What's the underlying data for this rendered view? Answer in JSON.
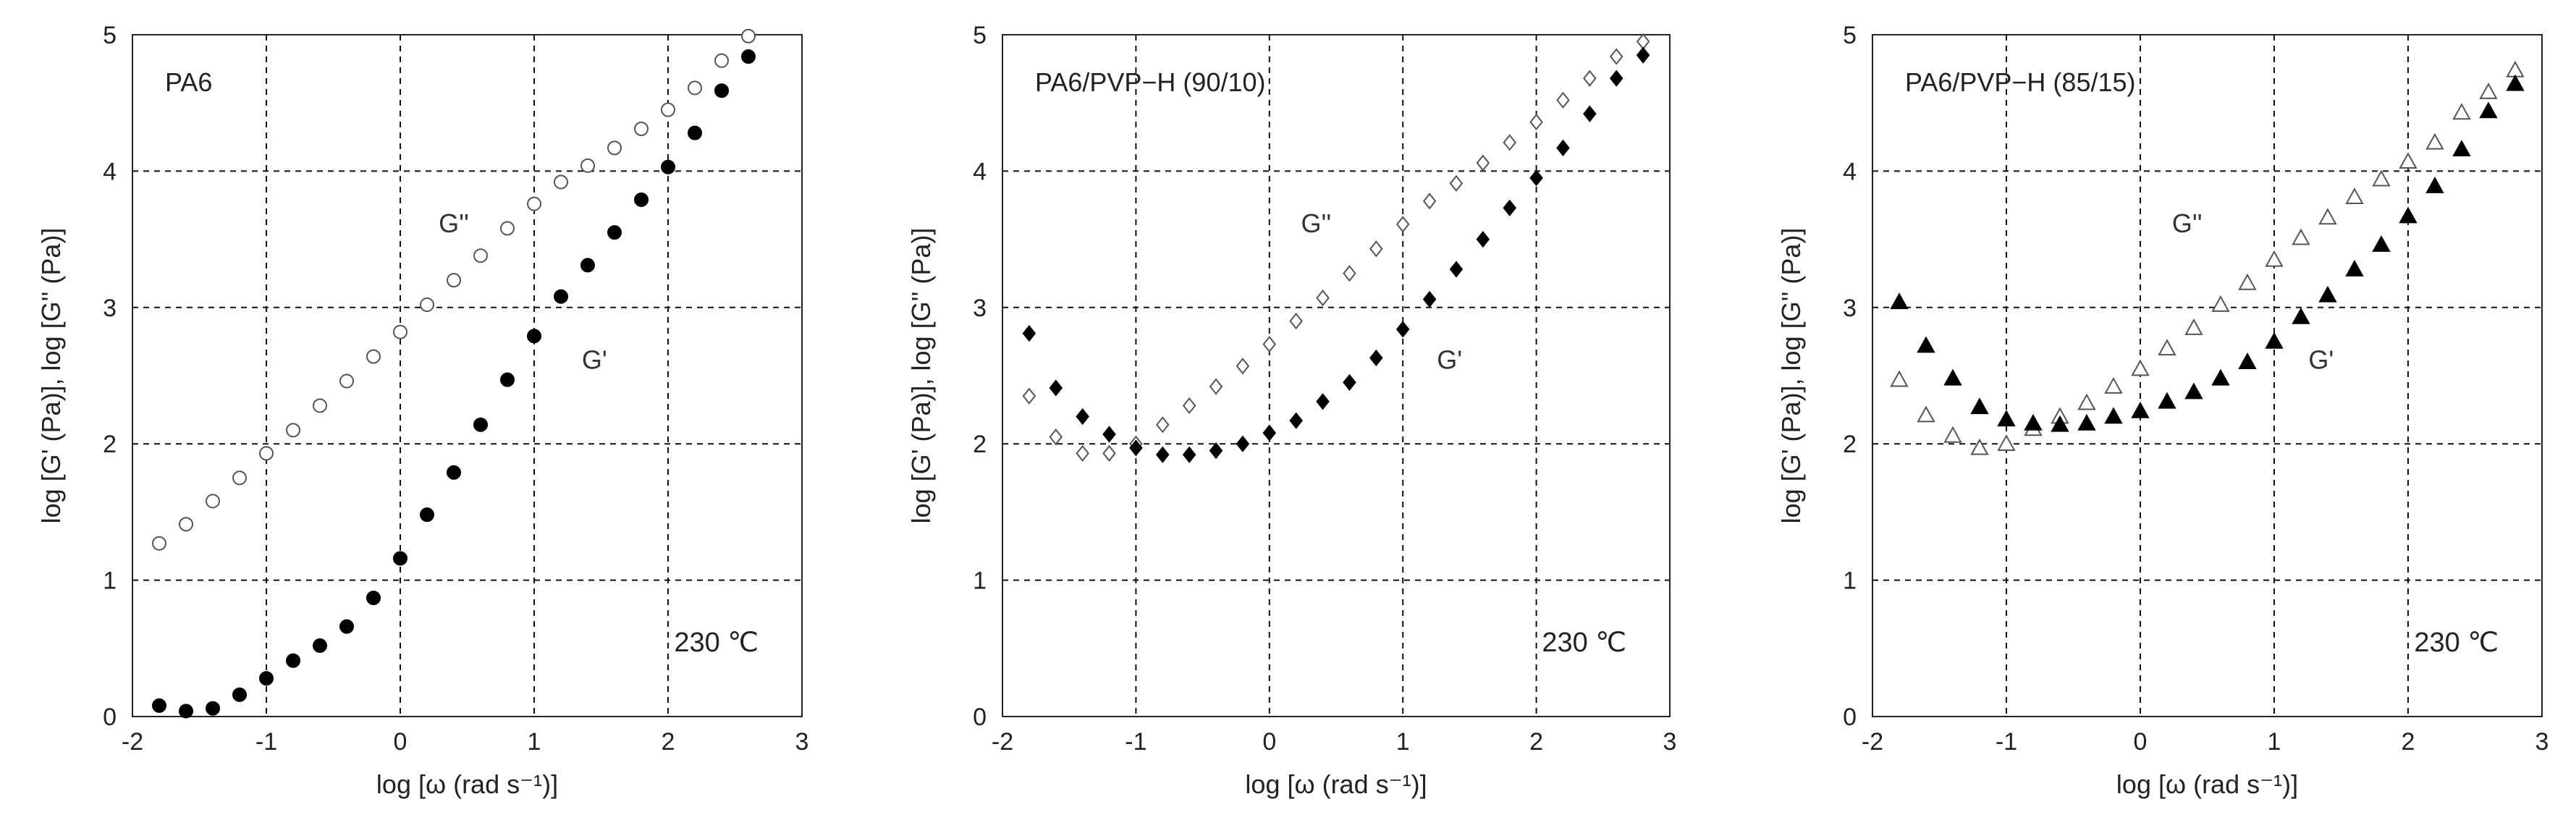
{
  "chart_data": [
    {
      "type": "scatter",
      "title": "PA6",
      "temperature": "230 ℃",
      "xlabel": "log [ω (rad s⁻¹)]",
      "ylabel": "log [G' (Pa)], log [G'' (Pa)]",
      "xlim": [
        -2,
        3
      ],
      "ylim": [
        0,
        5
      ],
      "xticks": [
        "-2",
        "-1",
        "0",
        "1",
        "2",
        "3"
      ],
      "yticks": [
        "0",
        "1",
        "2",
        "3",
        "4",
        "5"
      ],
      "marker": "circle",
      "series": [
        {
          "name": "G''",
          "label": "G''",
          "fill": "open",
          "x": [
            -1.8,
            -1.6,
            -1.4,
            -1.2,
            -1.0,
            -0.8,
            -0.6,
            -0.4,
            -0.2,
            0.0,
            0.2,
            0.4,
            0.6,
            0.8,
            1.0,
            1.2,
            1.4,
            1.6,
            1.8,
            2.0,
            2.2,
            2.4,
            2.6
          ],
          "y": [
            1.27,
            1.41,
            1.58,
            1.75,
            1.93,
            2.1,
            2.28,
            2.46,
            2.64,
            2.82,
            3.02,
            3.2,
            3.38,
            3.58,
            3.76,
            3.92,
            4.04,
            4.17,
            4.31,
            4.45,
            4.61,
            4.81,
            4.99
          ]
        },
        {
          "name": "G'",
          "label": "G'",
          "fill": "filled",
          "x": [
            -1.8,
            -1.6,
            -1.4,
            -1.2,
            -1.0,
            -0.8,
            -0.6,
            -0.4,
            -0.2,
            0.0,
            0.2,
            0.4,
            0.6,
            0.8,
            1.0,
            1.2,
            1.4,
            1.6,
            1.8,
            2.0,
            2.2,
            2.4,
            2.6
          ],
          "y": [
            0.08,
            0.04,
            0.06,
            0.16,
            0.28,
            0.41,
            0.52,
            0.66,
            0.87,
            1.16,
            1.48,
            1.79,
            2.14,
            2.47,
            2.79,
            3.08,
            3.31,
            3.55,
            3.79,
            4.03,
            4.28,
            4.59,
            4.84
          ]
        }
      ],
      "annotations": [
        {
          "text": "G''",
          "x": 0.4,
          "y": 3.55
        },
        {
          "text": "G'",
          "x": 1.45,
          "y": 2.55
        }
      ]
    },
    {
      "type": "scatter",
      "title": "PA6/PVP−H (90/10)",
      "temperature": "230 ℃",
      "xlabel": "log [ω (rad s⁻¹)]",
      "ylabel": "log [G' (Pa)], log [G'' (Pa)]",
      "xlim": [
        -2,
        3
      ],
      "ylim": [
        0,
        5
      ],
      "xticks": [
        "-2",
        "-1",
        "0",
        "1",
        "2",
        "3"
      ],
      "yticks": [
        "0",
        "1",
        "2",
        "3",
        "4",
        "5"
      ],
      "marker": "diamond",
      "series": [
        {
          "name": "G''",
          "label": "G''",
          "fill": "open",
          "x": [
            -1.8,
            -1.6,
            -1.4,
            -1.2,
            -1.0,
            -0.8,
            -0.6,
            -0.4,
            -0.2,
            0.0,
            0.2,
            0.4,
            0.6,
            0.8,
            1.0,
            1.2,
            1.4,
            1.6,
            1.8,
            2.0,
            2.2,
            2.4,
            2.6,
            2.8
          ],
          "y": [
            2.35,
            2.05,
            1.93,
            1.93,
            2.0,
            2.14,
            2.28,
            2.42,
            2.57,
            2.73,
            2.9,
            3.07,
            3.25,
            3.43,
            3.61,
            3.78,
            3.91,
            4.06,
            4.21,
            4.36,
            4.52,
            4.68,
            4.84,
            4.95
          ]
        },
        {
          "name": "G'",
          "label": "G'",
          "fill": "filled",
          "x": [
            -1.8,
            -1.6,
            -1.4,
            -1.2,
            -1.0,
            -0.8,
            -0.6,
            -0.4,
            -0.2,
            0.0,
            0.2,
            0.4,
            0.6,
            0.8,
            1.0,
            1.2,
            1.4,
            1.6,
            1.8,
            2.0,
            2.2,
            2.4,
            2.6,
            2.8
          ],
          "y": [
            2.81,
            2.41,
            2.2,
            2.07,
            1.97,
            1.92,
            1.92,
            1.95,
            2.0,
            2.08,
            2.17,
            2.31,
            2.45,
            2.63,
            2.84,
            3.06,
            3.28,
            3.5,
            3.73,
            3.95,
            4.17,
            4.42,
            4.68,
            4.85
          ]
        }
      ],
      "annotations": [
        {
          "text": "G''",
          "x": 0.35,
          "y": 3.55
        },
        {
          "text": "G'",
          "x": 1.35,
          "y": 2.55
        }
      ]
    },
    {
      "type": "scatter",
      "title": "PA6/PVP−H (85/15)",
      "temperature": "230 ℃",
      "xlabel": "log [ω (rad s⁻¹)]",
      "ylabel": "log [G' (Pa)], log [G'' (Pa)]",
      "xlim": [
        -2,
        3
      ],
      "ylim": [
        0,
        5
      ],
      "xticks": [
        "-2",
        "-1",
        "0",
        "1",
        "2",
        "3"
      ],
      "yticks": [
        "0",
        "1",
        "2",
        "3",
        "4",
        "5"
      ],
      "marker": "triangle",
      "series": [
        {
          "name": "G''",
          "label": "G''",
          "fill": "open",
          "x": [
            -1.8,
            -1.6,
            -1.4,
            -1.2,
            -1.0,
            -0.8,
            -0.6,
            -0.4,
            -0.2,
            0.0,
            0.2,
            0.4,
            0.6,
            0.8,
            1.0,
            1.2,
            1.4,
            1.6,
            1.8,
            2.0,
            2.2,
            2.4,
            2.6,
            2.8
          ],
          "y": [
            2.47,
            2.21,
            2.06,
            1.97,
            2.0,
            2.11,
            2.2,
            2.3,
            2.42,
            2.55,
            2.7,
            2.85,
            3.02,
            3.18,
            3.35,
            3.51,
            3.66,
            3.81,
            3.94,
            4.07,
            4.21,
            4.43,
            4.58,
            4.74
          ]
        },
        {
          "name": "G'",
          "label": "G'",
          "fill": "filled",
          "x": [
            -1.8,
            -1.6,
            -1.4,
            -1.2,
            -1.0,
            -0.8,
            -0.6,
            -0.4,
            -0.2,
            0.0,
            0.2,
            0.4,
            0.6,
            0.8,
            1.0,
            1.2,
            1.4,
            1.6,
            1.8,
            2.0,
            2.2,
            2.4,
            2.6,
            2.8
          ],
          "y": [
            3.04,
            2.72,
            2.48,
            2.27,
            2.18,
            2.15,
            2.14,
            2.15,
            2.2,
            2.24,
            2.31,
            2.38,
            2.48,
            2.6,
            2.75,
            2.93,
            3.09,
            3.28,
            3.46,
            3.67,
            3.89,
            4.16,
            4.44,
            4.64
          ]
        }
      ],
      "annotations": [
        {
          "text": "G''",
          "x": 0.35,
          "y": 3.55
        },
        {
          "text": "G'",
          "x": 1.35,
          "y": 2.55
        }
      ]
    }
  ]
}
